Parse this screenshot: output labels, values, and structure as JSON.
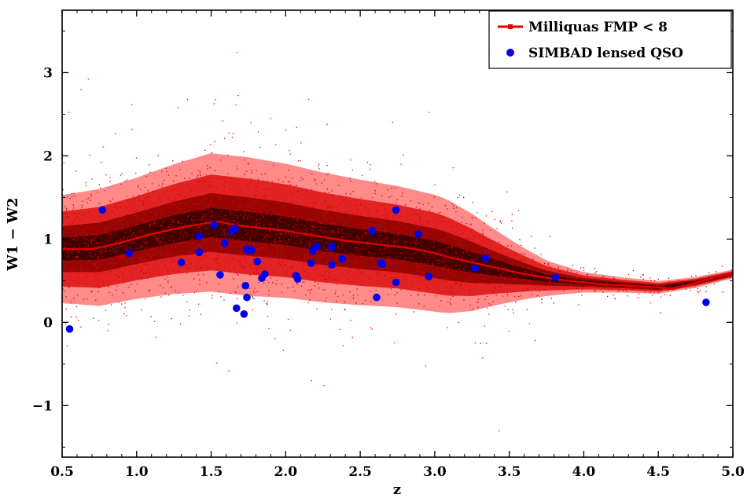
{
  "chart_data": {
    "type": "scatter",
    "xlabel": "z",
    "ylabel": "W1 − W2",
    "xlim": [
      0.5,
      5.0
    ],
    "ylim": [
      -1.62,
      3.75
    ],
    "x_ticks": [
      "0.5",
      "1.0",
      "1.5",
      "2.0",
      "2.5",
      "3.0",
      "3.5",
      "4.0",
      "4.5",
      "5.0"
    ],
    "x_tick_values": [
      0.5,
      1.0,
      1.5,
      2.0,
      2.5,
      3.0,
      3.5,
      4.0,
      4.5,
      5.0
    ],
    "y_ticks": [
      "−1",
      "0",
      "1",
      "2",
      "3"
    ],
    "y_tick_values": [
      -1,
      0,
      1,
      2,
      3
    ],
    "legend_placement": "top-right",
    "colors": {
      "milliquas": "#e00000",
      "simbad": "#0000ee",
      "density_dark": "#3a0000"
    },
    "series": [
      {
        "name": "Milliquas FMP < 8",
        "kind": "line",
        "x": [
          0.5,
          0.6,
          0.7,
          0.8,
          0.9,
          1.0,
          1.1,
          1.2,
          1.3,
          1.4,
          1.5,
          1.55,
          1.6,
          1.7,
          1.8,
          1.9,
          2.0,
          2.1,
          2.2,
          2.3,
          2.4,
          2.5,
          2.6,
          2.7,
          2.8,
          2.9,
          3.0,
          3.1,
          3.2,
          3.3,
          3.4,
          3.5,
          3.6,
          3.7,
          3.8,
          3.9,
          4.0,
          4.1,
          4.2,
          4.3,
          4.4,
          4.5,
          4.6,
          4.7,
          4.8,
          4.9,
          5.0
        ],
        "y": [
          0.88,
          0.88,
          0.88,
          0.92,
          0.96,
          1.01,
          1.06,
          1.1,
          1.14,
          1.17,
          1.2,
          1.21,
          1.19,
          1.16,
          1.14,
          1.12,
          1.1,
          1.07,
          1.04,
          1.01,
          0.98,
          0.96,
          0.94,
          0.92,
          0.9,
          0.87,
          0.83,
          0.78,
          0.74,
          0.7,
          0.66,
          0.62,
          0.58,
          0.55,
          0.52,
          0.5,
          0.48,
          0.46,
          0.45,
          0.44,
          0.43,
          0.42,
          0.4,
          0.45,
          0.5,
          0.55,
          0.58
        ]
      },
      {
        "name": "SIMBAD lensed QSO",
        "kind": "scatter",
        "x": [
          0.55,
          0.77,
          0.95,
          1.3,
          1.42,
          1.42,
          1.52,
          1.56,
          1.59,
          1.64,
          1.66,
          1.67,
          1.72,
          1.73,
          1.74,
          1.74,
          1.75,
          1.77,
          1.81,
          1.84,
          1.86,
          2.07,
          2.08,
          2.17,
          2.18,
          2.21,
          2.31,
          2.31,
          2.38,
          2.58,
          2.61,
          2.64,
          2.65,
          2.74,
          2.74,
          2.89,
          2.96,
          3.27,
          3.34,
          3.81,
          4.82
        ],
        "y": [
          -0.08,
          1.35,
          0.83,
          0.72,
          1.03,
          0.84,
          1.17,
          0.57,
          0.95,
          1.09,
          1.13,
          0.17,
          0.1,
          0.44,
          0.3,
          0.88,
          0.86,
          0.87,
          0.73,
          0.53,
          0.58,
          0.56,
          0.52,
          0.71,
          0.86,
          0.91,
          0.69,
          0.91,
          0.76,
          1.1,
          0.3,
          0.71,
          0.7,
          1.35,
          0.48,
          1.06,
          0.55,
          0.65,
          0.77,
          0.54,
          0.24
        ]
      }
    ],
    "background_density": {
      "name": "Milliquas FMP < 8",
      "kind": "density",
      "z": [
        0.5,
        0.75,
        1.0,
        1.25,
        1.5,
        1.75,
        2.0,
        2.25,
        2.5,
        2.75,
        3.0,
        3.25,
        3.5,
        3.75,
        4.0,
        4.25,
        4.5,
        4.75,
        5.0
      ],
      "center": [
        0.88,
        0.9,
        1.01,
        1.12,
        1.2,
        1.15,
        1.1,
        1.02,
        0.96,
        0.91,
        0.83,
        0.72,
        0.62,
        0.53,
        0.48,
        0.45,
        0.42,
        0.48,
        0.58
      ],
      "spread": [
        0.25,
        0.27,
        0.28,
        0.3,
        0.32,
        0.32,
        0.31,
        0.3,
        0.29,
        0.28,
        0.27,
        0.25,
        0.21,
        0.15,
        0.1,
        0.08,
        0.07,
        0.06,
        0.05
      ],
      "density": [
        0.75,
        0.8,
        0.9,
        0.96,
        1.0,
        0.98,
        0.95,
        0.9,
        0.85,
        0.8,
        0.7,
        0.55,
        0.35,
        0.2,
        0.12,
        0.09,
        0.07,
        0.06,
        0.05
      ]
    }
  }
}
